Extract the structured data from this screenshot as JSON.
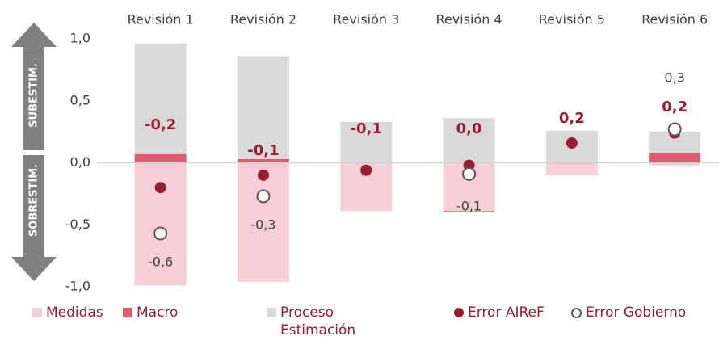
{
  "chart_data": {
    "type": "bar",
    "stacked": true,
    "categories": [
      "Revisión 1",
      "Revisión 2",
      "Revisión 3",
      "Revisión 4",
      "Revisión 5",
      "Revisión 6"
    ],
    "ylim": [
      -1.0,
      1.0
    ],
    "yticks": [
      {
        "value": -1.0,
        "label": "-1,0"
      },
      {
        "value": -0.5,
        "label": "-0,5"
      },
      {
        "value": 0,
        "label": "0,0"
      },
      {
        "value": 0.5,
        "label": "0,5"
      },
      {
        "value": 1.0,
        "label": "1,0"
      }
    ],
    "annotations": [
      "SUBESTIM.",
      "SOBRESTIM."
    ],
    "series": [
      {
        "name": "Medidas",
        "type": "bar",
        "color": "#f5cfd5",
        "values": [
          -0.99,
          -0.96,
          -0.39,
          -0.39,
          -0.1,
          -0.02
        ]
      },
      {
        "name": "Macro",
        "type": "bar",
        "color": "#e05a6e",
        "values": [
          0.07,
          0.03,
          0.0,
          -0.01,
          0.01,
          0.08
        ]
      },
      {
        "name": "Proceso Estimación",
        "type": "bar",
        "color": "#d9d9d9",
        "values": [
          0.89,
          0.83,
          0.33,
          0.36,
          0.25,
          0.17
        ]
      },
      {
        "name": "Error AIReF",
        "type": "scatter",
        "color": "#9b1b30",
        "values": [
          -0.2,
          -0.1,
          -0.06,
          -0.02,
          0.16,
          0.24
        ],
        "value_labels": [
          "-0,2",
          "-0,1",
          "-0,1",
          "0,0",
          "0,2",
          "0,2"
        ]
      },
      {
        "name": "Error Gobierno",
        "type": "scatter",
        "color": "#ffffff",
        "values": [
          -0.57,
          -0.27,
          null,
          -0.09,
          null,
          0.27
        ],
        "value_labels": [
          "-0,6",
          "-0,3",
          null,
          "-0,1",
          null,
          "0,3"
        ]
      }
    ]
  }
}
